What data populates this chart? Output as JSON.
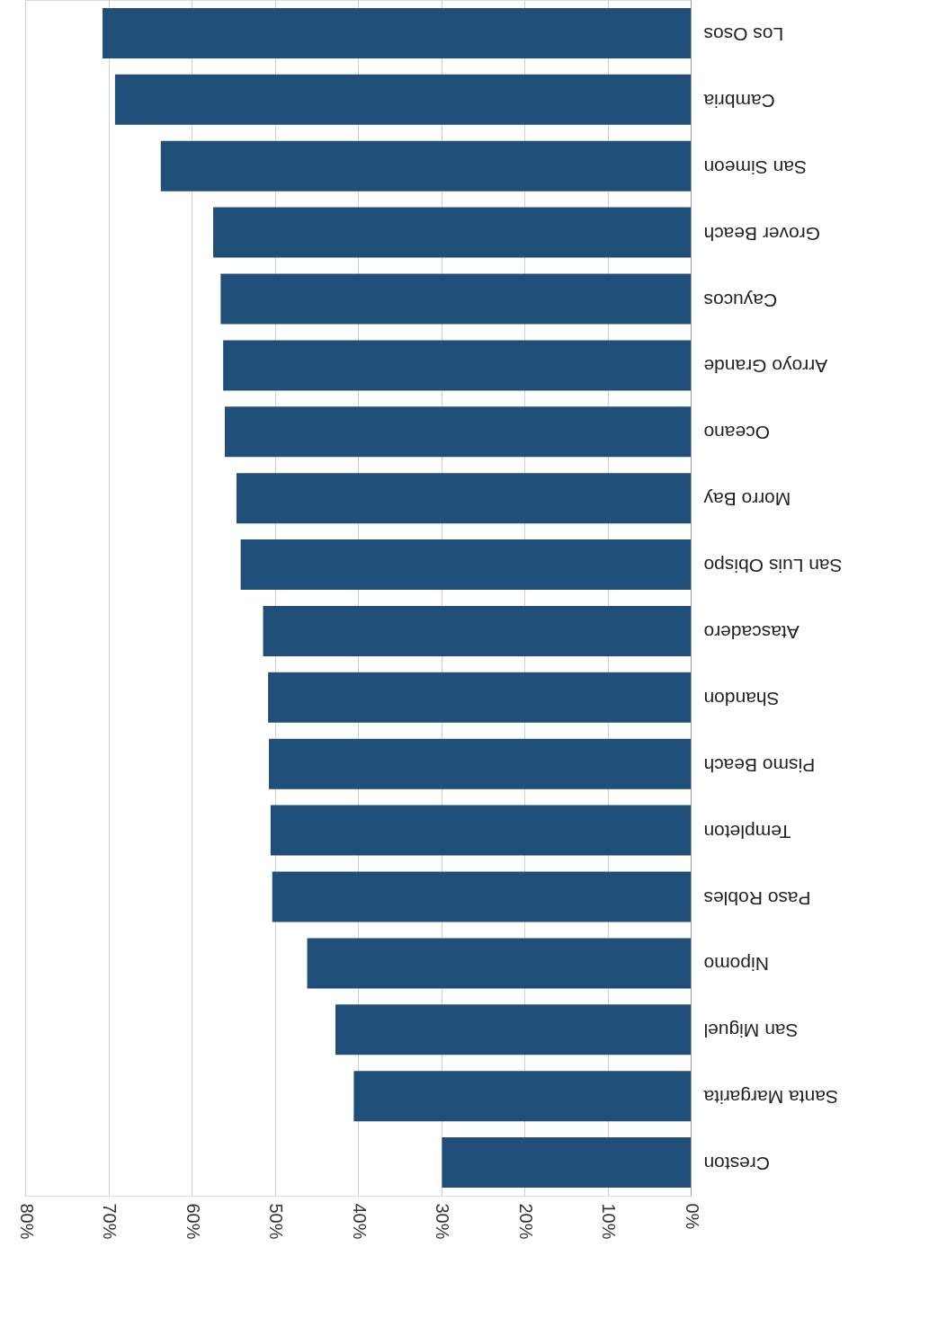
{
  "chart_data": {
    "type": "bar",
    "orientation": "horizontal",
    "categories": [
      "Los Osos",
      "Cambria",
      "San Simeon",
      "Grover Beach",
      "Cayucos",
      "Arroyo Grande",
      "Oceano",
      "Morro Bay",
      "San Luis Obispo",
      "Atascadero",
      "Shandon",
      "Pismo Beach",
      "Templeton",
      "Paso Robles",
      "Nipomo",
      "San Miguel",
      "Santa Margarita",
      "Creston"
    ],
    "values": [
      70.7,
      69.2,
      63.7,
      57.4,
      56.5,
      56.2,
      56.0,
      54.6,
      54.1,
      51.4,
      50.8,
      50.7,
      50.5,
      50.3,
      46.1,
      42.7,
      40.5,
      29.9
    ],
    "color": "#1f4e79",
    "xlim": [
      80,
      0
    ],
    "xticks": [
      {
        "value": 80,
        "label": "80%"
      },
      {
        "value": 70,
        "label": "70%"
      },
      {
        "value": 60,
        "label": "60%"
      },
      {
        "value": 50,
        "label": "50%"
      },
      {
        "value": 40,
        "label": "40%"
      },
      {
        "value": 30,
        "label": "30%"
      },
      {
        "value": 20,
        "label": "20%"
      },
      {
        "value": 10,
        "label": "10%"
      },
      {
        "value": 0,
        "label": "0%"
      }
    ],
    "grid": "x"
  }
}
